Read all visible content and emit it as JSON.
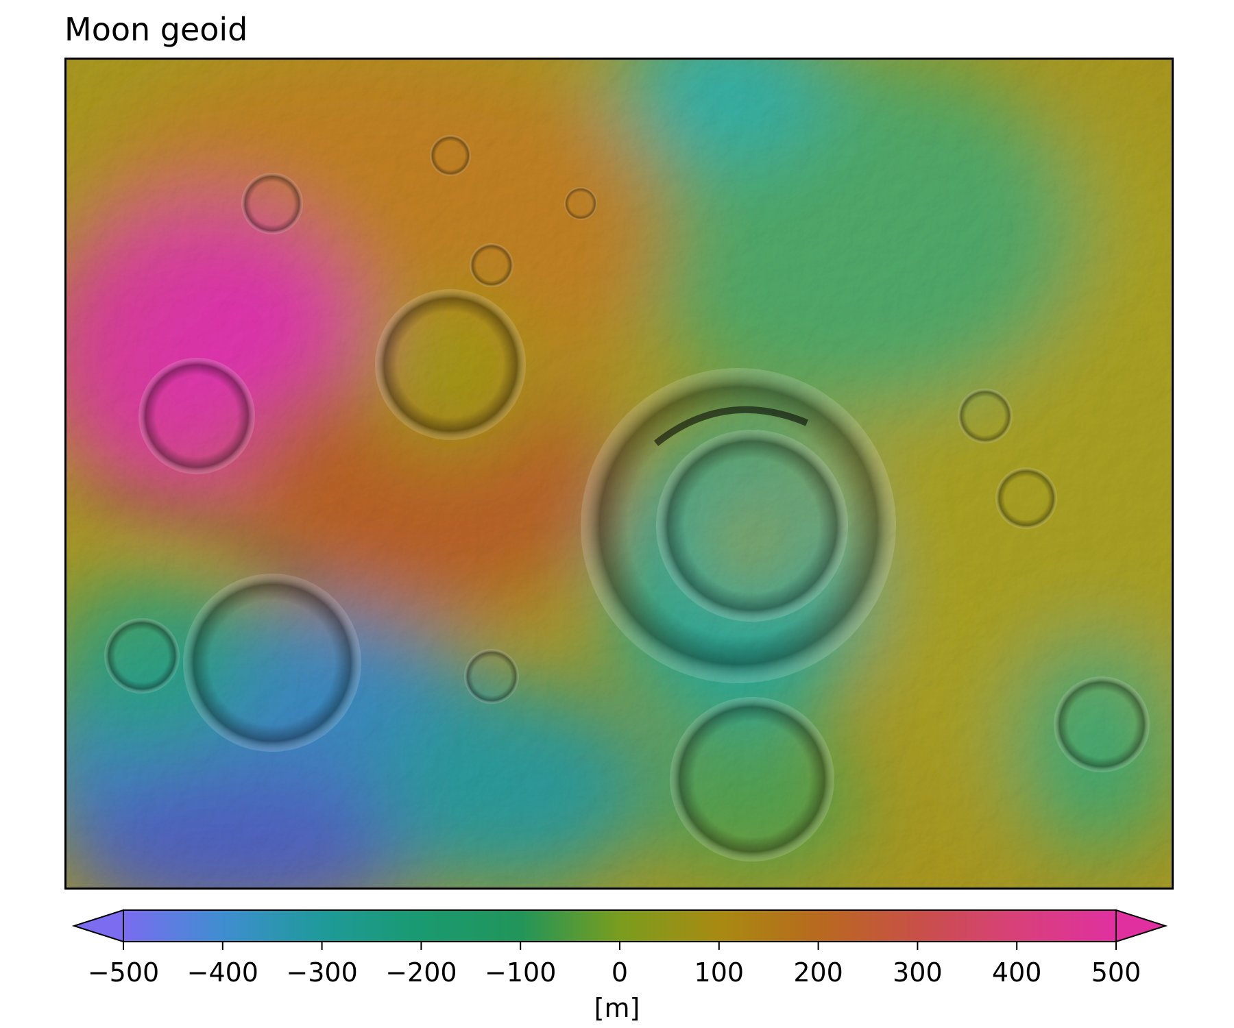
{
  "title": "Moon geoid",
  "colorbar": {
    "label": "[m]",
    "ticks": [
      -500,
      -400,
      -300,
      -200,
      -100,
      0,
      100,
      200,
      300,
      400,
      500
    ],
    "tick_labels": [
      "−500",
      "−400",
      "−300",
      "−200",
      "−100",
      "0",
      "100",
      "200",
      "300",
      "400",
      "500"
    ],
    "range": [
      -500,
      500
    ],
    "extend": "both",
    "colors": [
      "#7b6cf0",
      "#3f8ed0",
      "#1f9a9a",
      "#1a9a70",
      "#22955a",
      "#7a9d1e",
      "#a88a12",
      "#b86a1e",
      "#c85048",
      "#d8407a",
      "#e030a0"
    ]
  },
  "map": {
    "projection_note": "",
    "colors": {
      "magenta": "#e030b0",
      "red": "#c84848",
      "orange": "#b8801c",
      "yellow": "#a8a018",
      "green": "#40a050",
      "teal": "#20a8a0",
      "blue": "#4a70c8",
      "violet": "#6a60c8"
    }
  }
}
